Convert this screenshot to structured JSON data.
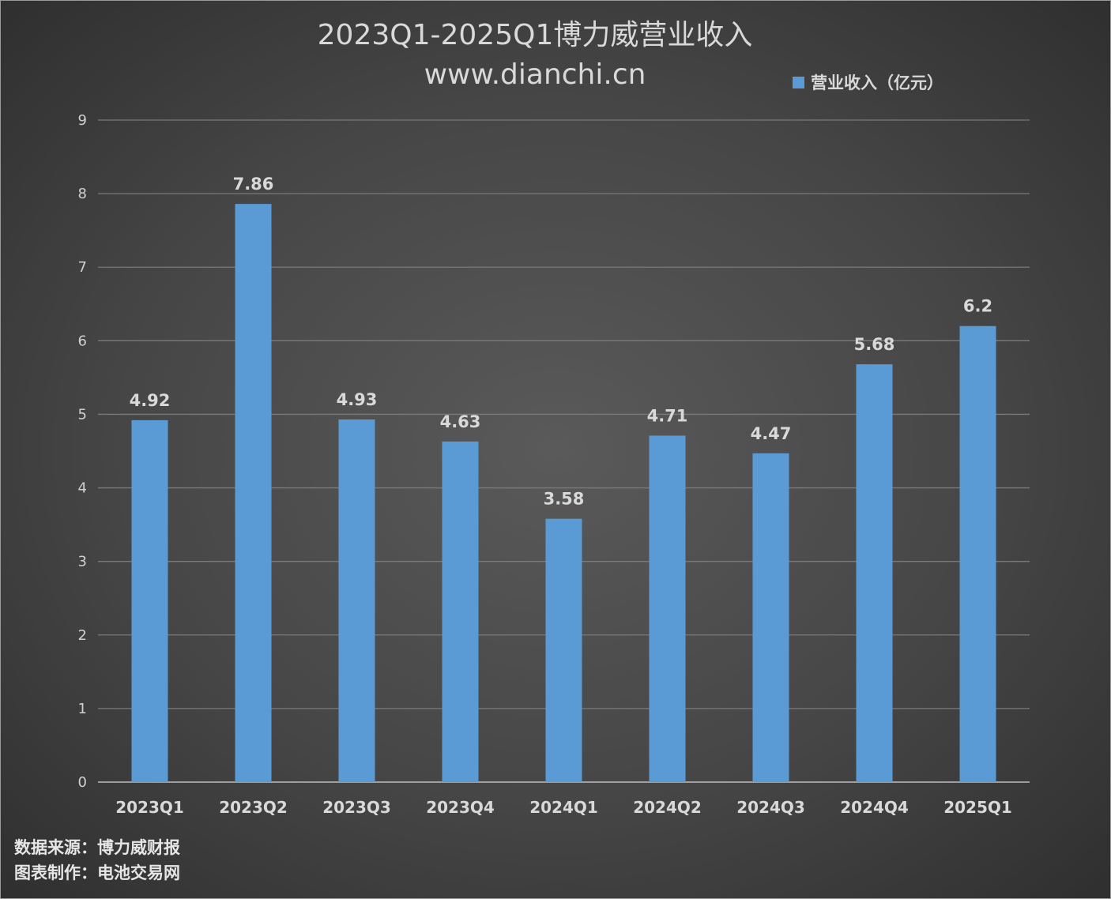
{
  "chart_data": {
    "type": "bar",
    "title": "2023Q1-2025Q1博力威营业收入",
    "subtitle": "www.dianchi.cn",
    "categories": [
      "2023Q1",
      "2023Q2",
      "2023Q3",
      "2023Q4",
      "2024Q1",
      "2024Q2",
      "2024Q3",
      "2024Q4",
      "2025Q1"
    ],
    "series": [
      {
        "name": "营业收入（亿元）",
        "values": [
          4.92,
          7.86,
          4.93,
          4.63,
          3.58,
          4.71,
          4.47,
          5.68,
          6.2
        ]
      }
    ],
    "data_labels": [
      "4.92",
      "7.86",
      "4.93",
      "4.63",
      "3.58",
      "4.71",
      "4.47",
      "5.68",
      "6.2"
    ],
    "yticks": [
      "0",
      "1",
      "2",
      "3",
      "4",
      "5",
      "6",
      "7",
      "8",
      "9"
    ],
    "ylim": [
      0,
      9
    ],
    "grid": true,
    "legend_position": "top-right",
    "bar_color": "#5b9bd5",
    "background_color": "#464646"
  },
  "footer": {
    "source": "数据来源：博力威财报",
    "producer": "图表制作：电池交易网"
  }
}
